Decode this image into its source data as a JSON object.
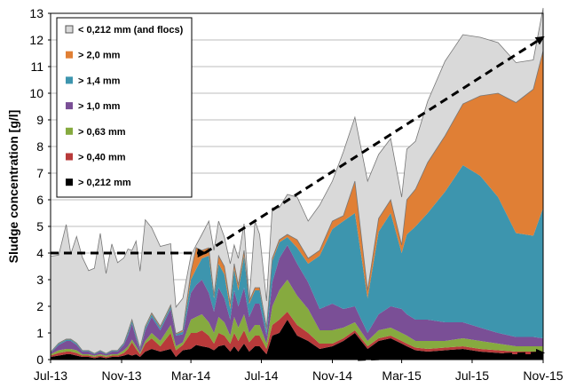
{
  "chart_data": {
    "type": "area",
    "stacked": true,
    "ylabel": "Sludge concentration [g/l]",
    "xlabel": "",
    "ylim": [
      0,
      13
    ],
    "yticks": [
      0,
      1,
      2,
      3,
      4,
      5,
      6,
      7,
      8,
      9,
      10,
      11,
      12,
      13
    ],
    "xlim": [
      "2013-07-01",
      "2015-11-01"
    ],
    "xticks": [
      "Jul-13",
      "Nov-13",
      "Mar-14",
      "Jul-14",
      "Nov-14",
      "Mar-15",
      "Jul-15",
      "Nov-15"
    ],
    "xtick_dates": [
      "2013-07-01",
      "2013-11-01",
      "2014-03-01",
      "2014-07-01",
      "2014-11-01",
      "2015-03-01",
      "2015-07-01",
      "2015-11-01"
    ],
    "grid": "horizontal",
    "legend_position": "top-left",
    "dates": [
      "2013-07-01",
      "2013-07-15",
      "2013-07-28",
      "2013-08-05",
      "2013-08-15",
      "2013-08-25",
      "2013-09-05",
      "2013-09-15",
      "2013-09-25",
      "2013-10-05",
      "2013-10-15",
      "2013-10-25",
      "2013-11-05",
      "2013-11-12",
      "2013-11-19",
      "2013-11-26",
      "2013-12-03",
      "2013-12-12",
      "2013-12-23",
      "2014-01-07",
      "2014-01-25",
      "2014-02-03",
      "2014-02-15",
      "2014-03-01",
      "2014-03-10",
      "2014-03-20",
      "2014-04-01",
      "2014-04-10",
      "2014-04-18",
      "2014-04-28",
      "2014-05-08",
      "2014-05-15",
      "2014-05-22",
      "2014-06-01",
      "2014-06-10",
      "2014-06-20",
      "2014-06-28",
      "2014-07-10",
      "2014-07-20",
      "2014-08-01",
      "2014-08-15",
      "2014-09-01",
      "2014-09-20",
      "2014-10-10",
      "2014-11-01",
      "2014-11-20",
      "2014-12-10",
      "2015-01-01",
      "2015-01-20",
      "2015-02-10",
      "2015-03-01",
      "2015-03-10",
      "2015-03-25",
      "2015-04-15",
      "2015-05-15",
      "2015-06-15",
      "2015-07-15",
      "2015-08-15",
      "2015-09-15",
      "2015-10-15",
      "2015-11-01"
    ],
    "series": [
      {
        "name": "> 0,212 mm",
        "color": "#000000",
        "values": [
          0.1,
          0.15,
          0.2,
          0.2,
          0.15,
          0.1,
          0.1,
          0.05,
          0.1,
          0.05,
          0.1,
          0.1,
          0.15,
          0.2,
          0.15,
          0.2,
          0.1,
          0.3,
          0.4,
          0.3,
          0.4,
          0.1,
          0.35,
          0.4,
          0.55,
          0.5,
          0.45,
          0.35,
          0.5,
          0.55,
          0.3,
          0.5,
          0.3,
          0.6,
          0.3,
          0.5,
          0.5,
          0.2,
          0.9,
          1.0,
          1.5,
          0.9,
          0.7,
          0.4,
          0.5,
          0.7,
          1.0,
          0.4,
          0.7,
          0.8,
          0.6,
          0.5,
          0.35,
          0.3,
          0.35,
          0.4,
          0.3,
          0.25,
          0.2,
          0.2,
          0.2
        ]
      },
      {
        "name": "> 0,40 mm",
        "color": "#b83a3a",
        "values": [
          0.05,
          0.1,
          0.1,
          0.1,
          0.1,
          0.05,
          0.05,
          0.05,
          0.05,
          0.05,
          0.05,
          0.05,
          0.1,
          0.2,
          0.5,
          0.2,
          0.1,
          0.3,
          0.4,
          0.2,
          0.6,
          0.25,
          0.2,
          0.6,
          0.45,
          0.6,
          0.45,
          0.25,
          0.5,
          0.35,
          0.3,
          0.5,
          0.4,
          0.5,
          0.35,
          0.4,
          0.4,
          0.2,
          0.4,
          0.5,
          0.3,
          0.4,
          0.3,
          0.2,
          0.1,
          0.1,
          0.1,
          0.1,
          0.1,
          0.1,
          0.1,
          0.1,
          0.1,
          0.1,
          0.1,
          0.1,
          0.1,
          0.1,
          0.1,
          0.1,
          0.1
        ]
      },
      {
        "name": "> 0,63 mm",
        "color": "#86aa3f",
        "values": [
          0.05,
          0.1,
          0.1,
          0.1,
          0.1,
          0.05,
          0.05,
          0.05,
          0.05,
          0.05,
          0.05,
          0.05,
          0.1,
          0.1,
          0.1,
          0.1,
          0.05,
          0.1,
          0.2,
          0.2,
          0.3,
          0.15,
          0.1,
          0.5,
          0.6,
          0.6,
          0.5,
          0.4,
          0.6,
          0.5,
          0.3,
          0.6,
          0.5,
          0.6,
          0.35,
          0.4,
          0.4,
          0.2,
          0.7,
          1.1,
          1.2,
          1.1,
          0.9,
          0.5,
          0.5,
          0.4,
          0.3,
          0.2,
          0.3,
          0.3,
          0.3,
          0.3,
          0.25,
          0.3,
          0.25,
          0.3,
          0.3,
          0.25,
          0.2,
          0.2,
          0.2
        ]
      },
      {
        "name": "> 1,0 mm",
        "color": "#7a4f96",
        "values": [
          0.05,
          0.2,
          0.3,
          0.3,
          0.2,
          0.1,
          0.1,
          0.05,
          0.1,
          0.05,
          0.1,
          0.1,
          0.2,
          0.4,
          0.6,
          0.3,
          0.1,
          0.4,
          0.6,
          0.4,
          0.6,
          0.4,
          0.3,
          1.0,
          1.2,
          1.3,
          1.1,
          0.8,
          1.1,
          0.9,
          0.6,
          1.0,
          0.8,
          1.0,
          0.6,
          0.8,
          0.8,
          0.3,
          0.9,
          1.2,
          1.3,
          1.2,
          1.0,
          0.8,
          1.0,
          0.7,
          0.6,
          0.3,
          0.6,
          0.8,
          0.9,
          0.8,
          0.8,
          0.8,
          0.7,
          0.6,
          0.5,
          0.4,
          0.35,
          0.35,
          0.3
        ]
      },
      {
        "name": "> 1,4 mm",
        "color": "#3d95ae",
        "values": [
          0.02,
          0.05,
          0.05,
          0.05,
          0.05,
          0.03,
          0.03,
          0.02,
          0.03,
          0.02,
          0.03,
          0.03,
          0.05,
          0.1,
          0.1,
          0.1,
          0.05,
          0.1,
          0.1,
          0.1,
          0.1,
          0.05,
          0.1,
          0.5,
          0.6,
          0.8,
          1.4,
          0.5,
          0.9,
          0.9,
          0.4,
          0.8,
          0.6,
          1.2,
          0.5,
          0.5,
          0.5,
          0.2,
          0.8,
          0.6,
          0.3,
          0.6,
          0.7,
          2.0,
          2.8,
          3.3,
          3.5,
          1.3,
          3.1,
          3.5,
          2.1,
          3.0,
          3.5,
          4.0,
          4.9,
          5.9,
          5.7,
          5.1,
          3.9,
          3.8,
          4.9
        ]
      },
      {
        "name": "> 2,0 mm",
        "color": "#e07f35",
        "values": [
          0.01,
          0.02,
          0.02,
          0.02,
          0.02,
          0.01,
          0.01,
          0.01,
          0.01,
          0.01,
          0.01,
          0.01,
          0.02,
          0.05,
          0.05,
          0.05,
          0.02,
          0.05,
          0.05,
          0.05,
          0.05,
          0.02,
          0.05,
          0.3,
          0.8,
          0.3,
          0.3,
          0.1,
          0.3,
          0.3,
          0.2,
          0.2,
          0.2,
          0.2,
          0.1,
          0.1,
          0.1,
          0.1,
          0.1,
          0.1,
          0.1,
          0.3,
          0.2,
          0.2,
          0.3,
          0.2,
          1.2,
          0.3,
          0.5,
          0.5,
          0.3,
          1.3,
          1.4,
          1.9,
          2.1,
          2.3,
          3.0,
          3.9,
          4.9,
          5.5,
          5.9
        ]
      },
      {
        "name": "< 0,212 mm (and flocs)",
        "color": "#d9d9d9",
        "values": [
          3.6,
          3.3,
          4.3,
          3.2,
          4.0,
          3.5,
          3.0,
          3.2,
          4.4,
          3.0,
          4.0,
          3.3,
          3.2,
          3.1,
          2.6,
          3.5,
          2.9,
          4.0,
          3.2,
          3.0,
          2.3,
          1.0,
          1.2,
          0.6,
          0.1,
          0.6,
          1.0,
          1.7,
          1.3,
          1.1,
          1.5,
          0.7,
          1.0,
          1.0,
          0.0,
          2.5,
          2.0,
          1.0,
          1.9,
          1.2,
          1.5,
          1.6,
          1.4,
          1.7,
          1.5,
          2.4,
          2.4,
          4.1,
          2.4,
          2.3,
          1.8,
          1.9,
          1.8,
          2.3,
          2.8,
          2.6,
          2.2,
          1.9,
          1.5,
          1.1,
          1.6
        ]
      }
    ],
    "annotations": [
      {
        "type": "dashed-arrow",
        "from": {
          "date": "2013-07-01",
          "value": 4.0
        },
        "to": {
          "date": "2014-03-25",
          "value": 4.0
        }
      },
      {
        "type": "dashed-arrow",
        "from": {
          "date": "2014-03-25",
          "value": 4.0
        },
        "to": {
          "date": "2015-11-01",
          "value": 12.1
        }
      },
      {
        "type": "dashed-arrow",
        "from": {
          "date": "2014-12-15",
          "value": 0.0
        },
        "to": {
          "date": "2015-11-01",
          "value": 0.25
        }
      }
    ]
  }
}
